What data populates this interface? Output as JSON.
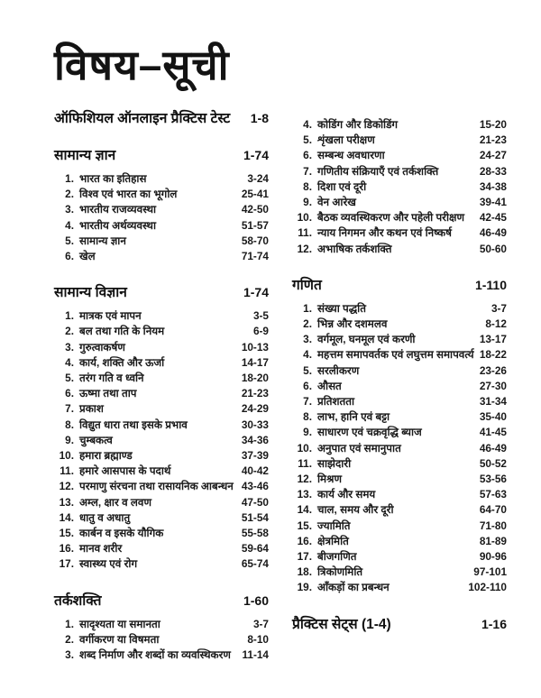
{
  "page_title": "विषय–सूची",
  "columns": [
    {
      "name": "left",
      "blocks": [
        {
          "heading": "ऑफिशियल ऑनलाइन प्रैक्टिस टेस्ट",
          "pages": "1-8",
          "items": []
        },
        {
          "heading": "सामान्य ज्ञान",
          "pages": "1-74",
          "items": [
            {
              "num": "1.",
              "label": "भारत का इतिहास",
              "pages": "3-24"
            },
            {
              "num": "2.",
              "label": "विश्व एवं भारत का भूगोल",
              "pages": "25-41"
            },
            {
              "num": "3.",
              "label": "भारतीय राजव्यवस्था",
              "pages": "42-50"
            },
            {
              "num": "4.",
              "label": "भारतीय अर्थव्यवस्था",
              "pages": "51-57"
            },
            {
              "num": "5.",
              "label": "सामान्य ज्ञान",
              "pages": "58-70"
            },
            {
              "num": "6.",
              "label": "खेल",
              "pages": "71-74"
            }
          ]
        },
        {
          "heading": "सामान्य विज्ञान",
          "pages": "1-74",
          "items": [
            {
              "num": "1.",
              "label": "मात्रक एवं मापन",
              "pages": "3-5"
            },
            {
              "num": "2.",
              "label": "बल तथा गति के नियम",
              "pages": "6-9"
            },
            {
              "num": "3.",
              "label": "गुरुत्वाकर्षण",
              "pages": "10-13"
            },
            {
              "num": "4.",
              "label": "कार्य, शक्ति और ऊर्जा",
              "pages": "14-17"
            },
            {
              "num": "5.",
              "label": "तरंग गति व ध्वनि",
              "pages": "18-20"
            },
            {
              "num": "6.",
              "label": "ऊष्मा तथा ताप",
              "pages": "21-23"
            },
            {
              "num": "7.",
              "label": "प्रकाश",
              "pages": "24-29"
            },
            {
              "num": "8.",
              "label": "विद्युत धारा तथा इसके प्रभाव",
              "pages": "30-33"
            },
            {
              "num": "9.",
              "label": "चुम्बकत्व",
              "pages": "34-36"
            },
            {
              "num": "10.",
              "label": "हमारा ब्रह्माण्ड",
              "pages": "37-39"
            },
            {
              "num": "11.",
              "label": "हमारे आसपास के पदार्थ",
              "pages": "40-42"
            },
            {
              "num": "12.",
              "label": "परमाणु संरचना तथा रासायनिक आबन्धन",
              "pages": "43-46"
            },
            {
              "num": "13.",
              "label": "अम्ल, क्षार व लवण",
              "pages": "47-50"
            },
            {
              "num": "14.",
              "label": "धातु व अधातु",
              "pages": "51-54"
            },
            {
              "num": "15.",
              "label": "कार्बन व इसके यौगिक",
              "pages": "55-58"
            },
            {
              "num": "16.",
              "label": "मानव शरीर",
              "pages": "59-64"
            },
            {
              "num": "17.",
              "label": "स्वास्थ्य एवं रोग",
              "pages": "65-74"
            }
          ]
        },
        {
          "heading": "तर्कशक्ति",
          "pages": "1-60",
          "items": [
            {
              "num": "1.",
              "label": "सादृश्यता या समानता",
              "pages": "3-7"
            },
            {
              "num": "2.",
              "label": "वर्गीकरण या विषमता",
              "pages": "8-10"
            },
            {
              "num": "3.",
              "label": "शब्द निर्माण और शब्दों का व्यवस्थिकरण",
              "pages": "11-14"
            }
          ]
        }
      ]
    },
    {
      "name": "right",
      "blocks": [
        {
          "heading": null,
          "pages": null,
          "items": [
            {
              "num": "4.",
              "label": "कोडिंग और डिकोडिंग",
              "pages": "15-20"
            },
            {
              "num": "5.",
              "label": "शृंखला परीक्षण",
              "pages": "21-23"
            },
            {
              "num": "6.",
              "label": "सम्बन्ध अवधारणा",
              "pages": "24-27"
            },
            {
              "num": "7.",
              "label": "गणितीय संक्रियाएँ एवं तर्कशक्ति",
              "pages": "28-33"
            },
            {
              "num": "8.",
              "label": "दिशा एवं दूरी",
              "pages": "34-38"
            },
            {
              "num": "9.",
              "label": "वेन आरेख",
              "pages": "39-41"
            },
            {
              "num": "10.",
              "label": "बैठक व्यवस्थिकरण और पहेली परीक्षण",
              "pages": "42-45"
            },
            {
              "num": "11.",
              "label": "न्याय निगमन और कथन एवं निष्कर्ष",
              "pages": "46-49"
            },
            {
              "num": "12.",
              "label": "अभाषिक तर्कशक्ति",
              "pages": "50-60"
            }
          ]
        },
        {
          "heading": "गणित",
          "pages": "1-110",
          "items": [
            {
              "num": "1.",
              "label": "संख्या पद्धति",
              "pages": "3-7"
            },
            {
              "num": "2.",
              "label": "भिन्न और दशमलव",
              "pages": "8-12"
            },
            {
              "num": "3.",
              "label": "वर्गमूल, घनमूल एवं करणी",
              "pages": "13-17"
            },
            {
              "num": "4.",
              "label": "महत्तम समापवर्तक एवं लघुत्तम समापवर्त्य",
              "pages": "18-22"
            },
            {
              "num": "5.",
              "label": "सरलीकरण",
              "pages": "23-26"
            },
            {
              "num": "6.",
              "label": "औसत",
              "pages": "27-30"
            },
            {
              "num": "7.",
              "label": "प्रतिशतता",
              "pages": "31-34"
            },
            {
              "num": "8.",
              "label": "लाभ, हानि एवं बट्टा",
              "pages": "35-40"
            },
            {
              "num": "9.",
              "label": "साधारण एवं चक्रवृद्धि ब्याज",
              "pages": "41-45"
            },
            {
              "num": "10.",
              "label": "अनुपात एवं समानुपात",
              "pages": "46-49"
            },
            {
              "num": "11.",
              "label": "साझेदारी",
              "pages": "50-52"
            },
            {
              "num": "12.",
              "label": "मिश्रण",
              "pages": "53-56"
            },
            {
              "num": "13.",
              "label": "कार्य और समय",
              "pages": "57-63"
            },
            {
              "num": "14.",
              "label": "चाल, समय और दूरी",
              "pages": "64-70"
            },
            {
              "num": "15.",
              "label": "ज्यामिति",
              "pages": "71-80"
            },
            {
              "num": "16.",
              "label": "क्षेत्रमिति",
              "pages": "81-89"
            },
            {
              "num": "17.",
              "label": "बीजगणित",
              "pages": "90-96"
            },
            {
              "num": "18.",
              "label": "त्रिकोणमिति",
              "pages": "97-101"
            },
            {
              "num": "19.",
              "label": "आँकड़ों का प्रबन्धन",
              "pages": "102-110"
            }
          ]
        },
        {
          "heading": "प्रैक्टिस सेट्स (1-4)",
          "pages": "1-16",
          "items": []
        }
      ]
    }
  ]
}
